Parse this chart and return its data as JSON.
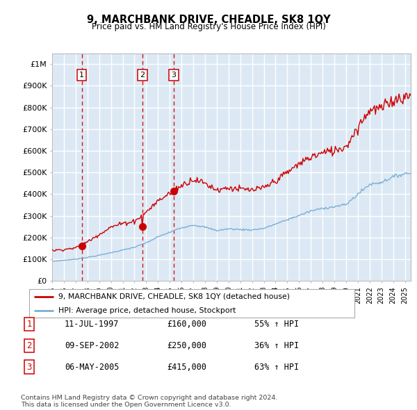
{
  "title": "9, MARCHBANK DRIVE, CHEADLE, SK8 1QY",
  "subtitle": "Price paid vs. HM Land Registry's House Price Index (HPI)",
  "ylim": [
    0,
    1050000
  ],
  "yticks": [
    0,
    100000,
    200000,
    300000,
    400000,
    500000,
    600000,
    700000,
    800000,
    900000,
    1000000
  ],
  "ytick_labels": [
    "£0",
    "£100K",
    "£200K",
    "£300K",
    "£400K",
    "£500K",
    "£600K",
    "£700K",
    "£800K",
    "£900K",
    "£1M"
  ],
  "xlim_start": 1995.0,
  "xlim_end": 2025.5,
  "plot_bg_color": "#dce9f5",
  "grid_color": "#ffffff",
  "red_line_color": "#cc0000",
  "blue_line_color": "#7bafd4",
  "sale_dates": [
    1997.53,
    2002.69,
    2005.35
  ],
  "sale_prices": [
    160000,
    250000,
    415000
  ],
  "sale_labels": [
    "1",
    "2",
    "3"
  ],
  "legend_line1": "9, MARCHBANK DRIVE, CHEADLE, SK8 1QY (detached house)",
  "legend_line2": "HPI: Average price, detached house, Stockport",
  "table_rows": [
    [
      "1",
      "11-JUL-1997",
      "£160,000",
      "55% ↑ HPI"
    ],
    [
      "2",
      "09-SEP-2002",
      "£250,000",
      "36% ↑ HPI"
    ],
    [
      "3",
      "06-MAY-2005",
      "£415,000",
      "63% ↑ HPI"
    ]
  ],
  "footer": "Contains HM Land Registry data © Crown copyright and database right 2024.\nThis data is licensed under the Open Government Licence v3.0."
}
